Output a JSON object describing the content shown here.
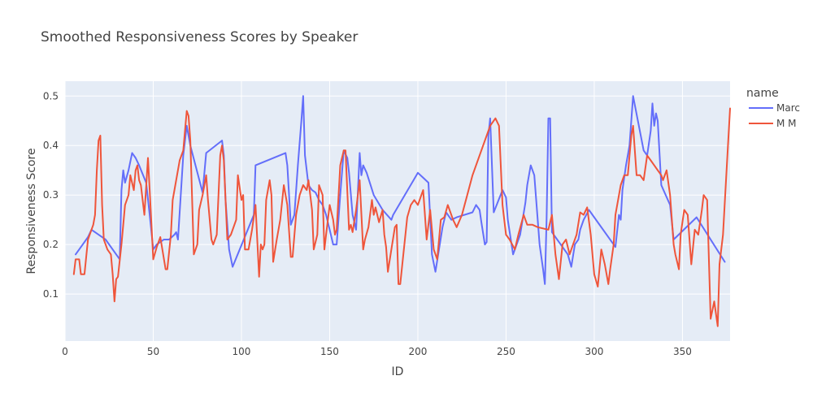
{
  "chart_data": {
    "type": "line",
    "title": "Smoothed Responsiveness Scores by Speaker",
    "xlabel": "ID",
    "ylabel": "Responsiveness Score",
    "xlim": [
      0,
      377
    ],
    "ylim": [
      0.005,
      0.53
    ],
    "x_ticks": [
      0,
      50,
      100,
      150,
      200,
      250,
      300,
      350
    ],
    "y_ticks": [
      0.1,
      0.2,
      0.3,
      0.4,
      0.5
    ],
    "y_tick_labels": [
      "0.1",
      "0.2",
      "0.3",
      "0.4",
      "0.5"
    ],
    "grid": true,
    "legend": {
      "title": "name",
      "position": "right"
    },
    "plot_bg": "#e5ecf6",
    "series": [
      {
        "name": "Marc",
        "color": "#636efa",
        "x": [
          6,
          8,
          11,
          13,
          15,
          17,
          23,
          28,
          31,
          32,
          33,
          34,
          36,
          38,
          40,
          42,
          46,
          48,
          50,
          52,
          54,
          56,
          59,
          62,
          63,
          64,
          67,
          69,
          71,
          78,
          80,
          89,
          90,
          91,
          93,
          95,
          107,
          108,
          125,
          126,
          128,
          130,
          132,
          134,
          135,
          136,
          138,
          140,
          142,
          144,
          146,
          148,
          150,
          152,
          154,
          156,
          158,
          160,
          161,
          163,
          165,
          167,
          168,
          169,
          171,
          175,
          180,
          185,
          186,
          200,
          203,
          206,
          208,
          210,
          214,
          216,
          219,
          222,
          231,
          233,
          235,
          236,
          238,
          239,
          240,
          241,
          243,
          248,
          250,
          251,
          254,
          258,
          261,
          262,
          264,
          266,
          269,
          271,
          272,
          273,
          274,
          275,
          276,
          278,
          281,
          285,
          287,
          289,
          291,
          292,
          294,
          297,
          312,
          314,
          315,
          316,
          318,
          320,
          322,
          328,
          330,
          332,
          333,
          334,
          335,
          336,
          338,
          343,
          345,
          358,
          374
        ],
        "y": [
          0.18,
          0.19,
          0.205,
          0.215,
          0.23,
          0.225,
          0.21,
          0.185,
          0.17,
          0.31,
          0.35,
          0.325,
          0.35,
          0.385,
          0.375,
          0.36,
          0.325,
          0.26,
          0.19,
          0.2,
          0.205,
          0.21,
          0.21,
          0.22,
          0.225,
          0.21,
          0.38,
          0.44,
          0.4,
          0.305,
          0.385,
          0.41,
          0.38,
          0.29,
          0.19,
          0.155,
          0.26,
          0.36,
          0.385,
          0.36,
          0.24,
          0.26,
          0.36,
          0.45,
          0.5,
          0.38,
          0.32,
          0.31,
          0.305,
          0.29,
          0.28,
          0.26,
          0.23,
          0.2,
          0.2,
          0.3,
          0.39,
          0.375,
          0.345,
          0.26,
          0.23,
          0.385,
          0.34,
          0.36,
          0.345,
          0.3,
          0.27,
          0.25,
          0.26,
          0.345,
          0.335,
          0.325,
          0.18,
          0.145,
          0.235,
          0.265,
          0.25,
          0.255,
          0.265,
          0.28,
          0.27,
          0.245,
          0.2,
          0.205,
          0.42,
          0.455,
          0.265,
          0.31,
          0.295,
          0.25,
          0.18,
          0.22,
          0.285,
          0.32,
          0.36,
          0.34,
          0.2,
          0.15,
          0.12,
          0.25,
          0.455,
          0.455,
          0.225,
          0.215,
          0.2,
          0.18,
          0.155,
          0.2,
          0.21,
          0.23,
          0.25,
          0.27,
          0.195,
          0.26,
          0.25,
          0.31,
          0.36,
          0.4,
          0.5,
          0.39,
          0.38,
          0.43,
          0.485,
          0.44,
          0.465,
          0.45,
          0.32,
          0.28,
          0.21,
          0.255,
          0.165
        ]
      },
      {
        "name": "M M",
        "color": "#ef553b",
        "x": [
          5,
          6,
          8,
          9,
          11,
          13,
          16,
          17,
          18,
          19,
          20,
          21,
          22,
          24,
          26,
          27,
          28,
          29,
          30,
          32,
          34,
          36,
          37,
          39,
          40,
          41,
          42,
          43,
          45,
          47,
          48,
          50,
          52,
          54,
          57,
          58,
          60,
          61,
          63,
          65,
          67,
          69,
          70,
          71,
          73,
          75,
          76,
          78,
          80,
          81,
          83,
          84,
          86,
          88,
          89,
          90,
          92,
          94,
          97,
          98,
          100,
          101,
          102,
          104,
          106,
          108,
          110,
          111,
          112,
          113,
          114,
          116,
          117,
          118,
          120,
          122,
          124,
          126,
          128,
          129,
          131,
          133,
          135,
          137,
          138,
          140,
          141,
          143,
          144,
          146,
          147,
          148,
          150,
          152,
          153,
          154,
          156,
          158,
          159,
          161,
          162,
          163,
          165,
          167,
          169,
          170,
          172,
          174,
          175,
          176,
          178,
          180,
          181,
          182,
          183,
          185,
          187,
          188,
          189,
          190,
          194,
          196,
          198,
          200,
          202,
          203,
          205,
          207,
          209,
          211,
          213,
          215,
          217,
          220,
          222,
          225,
          228,
          231,
          241,
          244,
          246,
          248,
          250,
          252,
          255,
          257,
          260,
          262,
          265,
          268,
          274,
          276,
          278,
          280,
          282,
          284,
          286,
          288,
          290,
          292,
          294,
          296,
          298,
          300,
          302,
          304,
          306,
          308,
          309,
          311,
          312,
          315,
          317,
          319,
          321,
          322,
          324,
          326,
          328,
          330,
          332,
          334,
          336,
          338,
          339,
          341,
          343,
          345,
          346,
          348,
          349,
          351,
          353,
          355,
          357,
          359,
          361,
          362,
          364,
          366,
          368,
          370,
          371,
          373,
          375,
          377
        ],
        "y": [
          0.14,
          0.17,
          0.17,
          0.14,
          0.14,
          0.21,
          0.24,
          0.26,
          0.35,
          0.41,
          0.42,
          0.28,
          0.21,
          0.19,
          0.18,
          0.14,
          0.085,
          0.13,
          0.135,
          0.2,
          0.28,
          0.3,
          0.34,
          0.31,
          0.35,
          0.36,
          0.33,
          0.32,
          0.26,
          0.375,
          0.31,
          0.17,
          0.195,
          0.215,
          0.15,
          0.15,
          0.22,
          0.29,
          0.33,
          0.37,
          0.39,
          0.47,
          0.46,
          0.41,
          0.18,
          0.2,
          0.27,
          0.3,
          0.34,
          0.29,
          0.21,
          0.2,
          0.22,
          0.38,
          0.4,
          0.37,
          0.21,
          0.22,
          0.25,
          0.34,
          0.29,
          0.3,
          0.19,
          0.19,
          0.23,
          0.28,
          0.135,
          0.2,
          0.19,
          0.2,
          0.29,
          0.33,
          0.3,
          0.165,
          0.21,
          0.25,
          0.32,
          0.28,
          0.175,
          0.175,
          0.26,
          0.3,
          0.32,
          0.31,
          0.33,
          0.27,
          0.19,
          0.22,
          0.32,
          0.3,
          0.19,
          0.22,
          0.28,
          0.25,
          0.22,
          0.23,
          0.36,
          0.39,
          0.39,
          0.23,
          0.24,
          0.225,
          0.27,
          0.33,
          0.19,
          0.21,
          0.235,
          0.29,
          0.26,
          0.275,
          0.245,
          0.27,
          0.22,
          0.195,
          0.145,
          0.19,
          0.235,
          0.24,
          0.12,
          0.12,
          0.255,
          0.28,
          0.29,
          0.28,
          0.3,
          0.31,
          0.21,
          0.27,
          0.19,
          0.17,
          0.25,
          0.255,
          0.28,
          0.25,
          0.235,
          0.26,
          0.3,
          0.34,
          0.44,
          0.455,
          0.44,
          0.28,
          0.22,
          0.21,
          0.19,
          0.22,
          0.26,
          0.24,
          0.24,
          0.235,
          0.23,
          0.26,
          0.18,
          0.13,
          0.2,
          0.21,
          0.18,
          0.2,
          0.22,
          0.265,
          0.26,
          0.275,
          0.22,
          0.14,
          0.115,
          0.19,
          0.16,
          0.12,
          0.15,
          0.2,
          0.26,
          0.32,
          0.34,
          0.34,
          0.42,
          0.44,
          0.34,
          0.34,
          0.33,
          0.38,
          0.37,
          0.36,
          0.35,
          0.34,
          0.33,
          0.35,
          0.3,
          0.2,
          0.18,
          0.15,
          0.22,
          0.27,
          0.26,
          0.16,
          0.23,
          0.22,
          0.27,
          0.3,
          0.29,
          0.05,
          0.085,
          0.035,
          0.16,
          0.22,
          0.35,
          0.475
        ]
      }
    ]
  }
}
